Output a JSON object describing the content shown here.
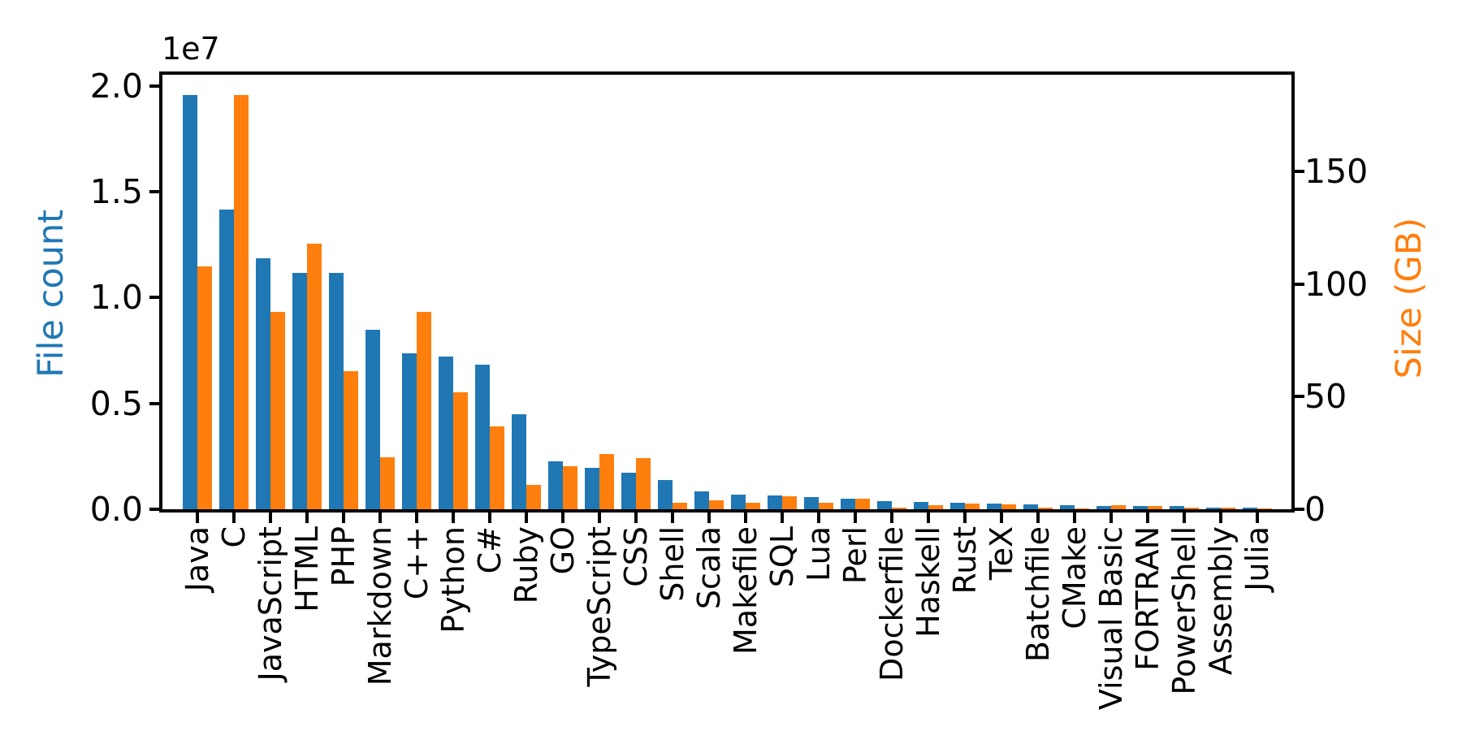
{
  "figure": {
    "background": "#ffffff"
  },
  "colors": {
    "file_count_blue": "#1f77b4",
    "size_orange": "#ff7f0e",
    "axis_black": "#000000",
    "background": "#ffffff"
  },
  "chart_data": {
    "type": "bar",
    "title": "",
    "grid": false,
    "legend": "none",
    "bar_width_fraction": 0.4,
    "categories": [
      "Java",
      "C",
      "JavaScript",
      "HTML",
      "PHP",
      "Markdown",
      "C++",
      "Python",
      "C#",
      "Ruby",
      "GO",
      "TypeScript",
      "CSS",
      "Shell",
      "Scala",
      "Makefile",
      "SQL",
      "Lua",
      "Perl",
      "Dockerfile",
      "Haskell",
      "Rust",
      "TeX",
      "Batchfile",
      "CMake",
      "Visual Basic",
      "FORTRAN",
      "PowerShell",
      "Assembly",
      "Julia"
    ],
    "series": [
      {
        "name": "File count",
        "axis": "left",
        "color": "#1f77b4",
        "values": [
          19548190,
          14143113,
          11839883,
          11178557,
          11177610,
          8464626,
          7380520,
          7226626,
          6811652,
          4473331,
          2265436,
          1940406,
          1734406,
          1385648,
          835755,
          679430,
          656671,
          578554,
          497949,
          366505,
          340623,
          322431,
          251015,
          236945,
          175282,
          155652,
          142038,
          136846,
          82905,
          58317
        ]
      },
      {
        "name": "Size (GB)",
        "axis": "right",
        "color": "#ff7f0e",
        "values": [
          107.7,
          183.83,
          87.82,
          118.12,
          61.41,
          23.09,
          87.73,
          52.03,
          36.83,
          10.95,
          19.28,
          24.59,
          22.67,
          3.01,
          3.87,
          2.92,
          5.67,
          2.81,
          4.7,
          0.71,
          1.85,
          2.68,
          2.15,
          0.7,
          0.54,
          1.91,
          1.62,
          0.69,
          0.78,
          0.29
        ]
      }
    ],
    "left_axis": {
      "label": "File count",
      "color": "#1f77b4",
      "offset_text": "1e7",
      "ylim": [
        0,
        20525600
      ],
      "tick_values": [
        20000000,
        15000000,
        10000000,
        5000000,
        0
      ],
      "tick_labels": [
        "2.0",
        "1.5",
        "1.0",
        "0.5",
        "0.0"
      ]
    },
    "right_axis": {
      "label": "Size (GB)",
      "color": "#ff7f0e",
      "ylim": [
        0,
        193.02
      ],
      "tick_values": [
        150,
        100,
        50,
        0
      ],
      "tick_labels": [
        "150",
        "100",
        "50",
        "0"
      ]
    }
  }
}
